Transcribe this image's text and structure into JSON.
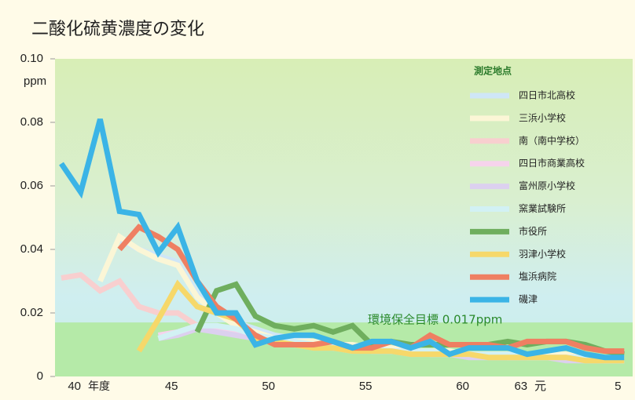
{
  "chart_data": {
    "type": "line",
    "title": "二酸化硫黄濃度の変化",
    "y_label": "ppm",
    "x_label": "年度",
    "legend_title": "測定地点",
    "annotation": "環境保全目標 0.017ppm",
    "target": 0.017,
    "categories": [
      null,
      "40",
      null,
      null,
      null,
      null,
      "45",
      null,
      null,
      null,
      null,
      "50",
      null,
      null,
      null,
      null,
      "55",
      null,
      null,
      null,
      null,
      "60",
      null,
      null,
      "63",
      "元",
      null,
      null,
      null,
      "5"
    ],
    "ylim": [
      0,
      0.1
    ],
    "yticks": [
      0,
      0.02,
      0.04,
      0.06,
      0.08,
      {
        "value": 0.1,
        "label": "0.10"
      }
    ],
    "series": [
      {
        "name": "四日市北高校",
        "color": "#cfe6f7",
        "values": [
          null,
          null,
          null,
          0.043,
          0.04,
          0.038,
          0.036,
          0.026,
          0.02,
          0.017,
          0.015,
          0.013,
          0.012,
          0.011,
          0.01,
          0.009,
          0.009,
          0.009,
          0.008,
          0.008,
          0.007,
          0.007,
          0.007,
          0.007,
          0.007,
          0.007,
          0.007,
          0.006,
          0.006,
          0.006
        ]
      },
      {
        "name": "三浜小学校",
        "color": "#fbf6d6",
        "values": [
          null,
          null,
          0.03,
          0.044,
          0.04,
          0.037,
          0.035,
          0.025,
          0.02,
          0.016,
          0.014,
          0.012,
          0.011,
          0.011,
          0.01,
          0.01,
          0.009,
          0.009,
          0.008,
          0.008,
          0.008,
          0.007,
          0.007,
          0.007,
          0.007,
          0.007,
          0.007,
          0.006,
          0.006,
          0.006
        ]
      },
      {
        "name": "南（南中学校）",
        "color": "#f8cfcf",
        "values": [
          0.031,
          0.032,
          0.027,
          0.03,
          0.022,
          0.02,
          0.02,
          0.016,
          0.015,
          0.013,
          0.012,
          0.011,
          0.01,
          0.01,
          0.009,
          0.009,
          0.008,
          0.008,
          0.008,
          0.007,
          0.007,
          0.007,
          0.006,
          0.006,
          0.006,
          0.006,
          0.006,
          0.005,
          0.005,
          0.005
        ]
      },
      {
        "name": "四日市商業高校",
        "color": "#f6d3ec",
        "values": [
          null,
          null,
          null,
          null,
          null,
          0.013,
          0.014,
          0.016,
          0.015,
          0.014,
          0.012,
          0.011,
          0.01,
          0.01,
          0.009,
          0.009,
          0.008,
          0.008,
          0.008,
          0.007,
          0.007,
          0.007,
          0.007,
          0.006,
          0.006,
          0.006,
          0.006,
          0.006,
          0.005,
          0.005
        ]
      },
      {
        "name": "富州原小学校",
        "color": "#dcd0ef",
        "values": [
          null,
          null,
          null,
          null,
          null,
          0.012,
          0.013,
          0.015,
          0.014,
          0.013,
          0.012,
          0.011,
          0.01,
          0.009,
          0.009,
          0.008,
          0.008,
          0.008,
          0.007,
          0.007,
          0.007,
          0.006,
          0.006,
          0.006,
          0.006,
          0.006,
          0.005,
          0.005,
          0.005,
          0.005
        ]
      },
      {
        "name": "窯業試験所",
        "color": "#d2f1f4",
        "values": [
          null,
          null,
          null,
          null,
          null,
          0.012,
          0.014,
          0.016,
          0.016,
          0.015,
          0.013,
          0.012,
          0.011,
          0.01,
          0.01,
          0.009,
          0.009,
          0.008,
          0.008,
          0.008,
          0.007,
          0.007,
          0.007,
          0.007,
          0.006,
          0.006,
          0.006,
          0.006,
          0.006,
          0.005
        ]
      },
      {
        "name": "市役所",
        "color": "#6fae5e",
        "values": [
          null,
          null,
          null,
          null,
          null,
          null,
          null,
          0.014,
          0.027,
          0.029,
          0.019,
          0.016,
          0.015,
          0.016,
          0.014,
          0.016,
          0.01,
          0.011,
          0.01,
          0.01,
          0.01,
          0.01,
          0.01,
          0.011,
          0.01,
          0.011,
          0.011,
          0.01,
          0.008,
          0.007
        ]
      },
      {
        "name": "羽津小学校",
        "color": "#f6d86a",
        "values": [
          null,
          null,
          null,
          null,
          0.008,
          0.018,
          0.029,
          0.022,
          0.02,
          0.018,
          0.012,
          0.011,
          0.01,
          0.009,
          0.009,
          0.008,
          0.008,
          0.008,
          0.007,
          0.007,
          0.007,
          0.007,
          0.006,
          0.006,
          0.006,
          0.006,
          0.006,
          0.005,
          0.005,
          0.005
        ]
      },
      {
        "name": "塩浜病院",
        "color": "#ef7f62",
        "values": [
          null,
          null,
          null,
          0.04,
          0.047,
          0.044,
          0.04,
          0.03,
          0.022,
          0.018,
          0.013,
          0.01,
          0.01,
          0.01,
          0.011,
          0.009,
          0.009,
          0.011,
          0.009,
          0.013,
          0.01,
          0.01,
          0.01,
          0.009,
          0.011,
          0.011,
          0.011,
          0.009,
          0.008,
          0.008
        ]
      },
      {
        "name": "磯津",
        "color": "#3bb4e6",
        "values": [
          0.067,
          0.058,
          0.081,
          0.052,
          0.051,
          0.039,
          0.047,
          0.03,
          0.02,
          0.02,
          0.01,
          0.012,
          0.013,
          0.013,
          0.011,
          0.009,
          0.011,
          0.011,
          0.009,
          0.011,
          0.007,
          0.009,
          0.009,
          0.009,
          0.007,
          0.008,
          0.009,
          0.007,
          0.006,
          0.006
        ]
      }
    ]
  }
}
